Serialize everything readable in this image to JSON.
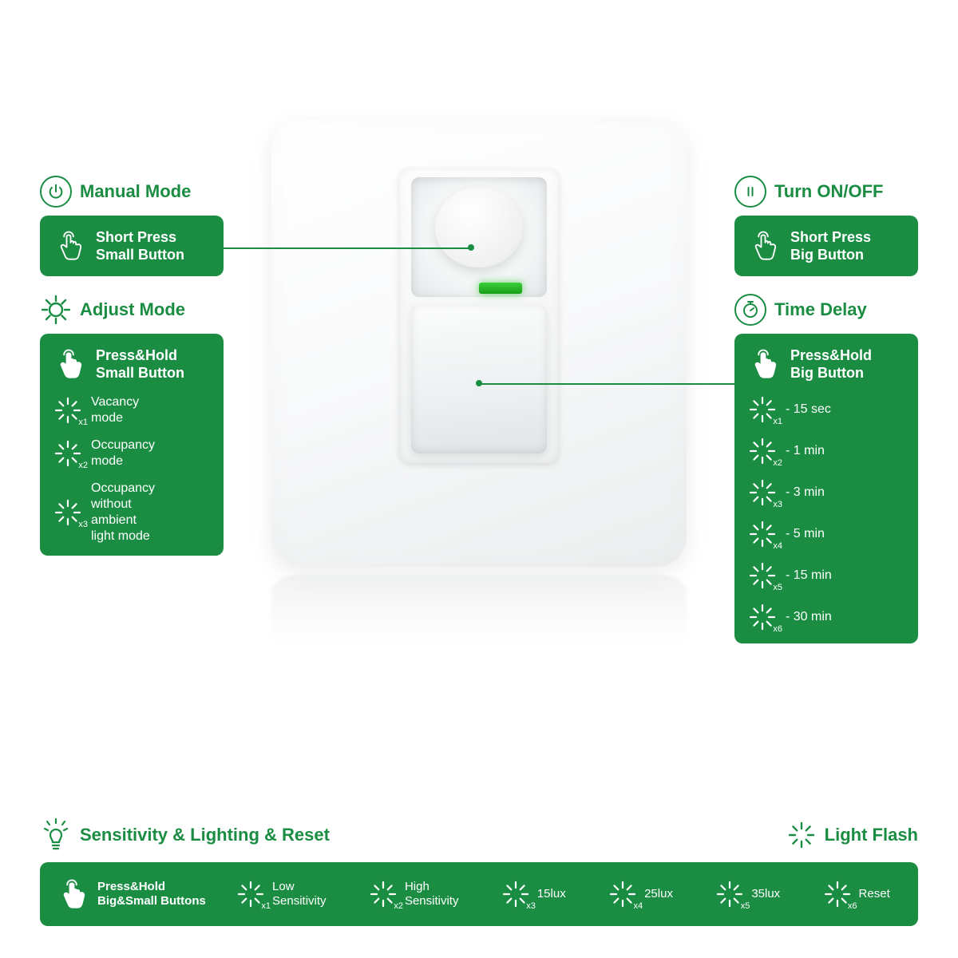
{
  "colors": {
    "green": "#1a8d43",
    "white": "#ffffff"
  },
  "manual": {
    "title": "Manual Mode",
    "action": "Short Press\nSmall Button"
  },
  "adjust": {
    "title": "Adjust Mode",
    "action": "Press&Hold\nSmall Button",
    "items": [
      {
        "x": "x1",
        "label": "Vacancy\nmode"
      },
      {
        "x": "x2",
        "label": "Occupancy\nmode"
      },
      {
        "x": "x3",
        "label": "Occupancy\nwithout\nambient\nlight mode"
      }
    ]
  },
  "onoff": {
    "title": "Turn ON/OFF",
    "action": "Short Press\nBig Button"
  },
  "delay": {
    "title": "Time Delay",
    "action": "Press&Hold\nBig Button",
    "items": [
      {
        "x": "x1",
        "label": "- 15 sec"
      },
      {
        "x": "x2",
        "label": "- 1 min"
      },
      {
        "x": "x3",
        "label": "- 3 min"
      },
      {
        "x": "x4",
        "label": "- 5 min"
      },
      {
        "x": "x5",
        "label": "- 15 min"
      },
      {
        "x": "x6",
        "label": "- 30 min"
      }
    ]
  },
  "bottom": {
    "title": "Sensitivity & Lighting & Reset",
    "flash_title": "Light Flash",
    "action": "Press&Hold\nBig&Small Buttons",
    "items": [
      {
        "x": "x1",
        "label": "Low\nSensitivity"
      },
      {
        "x": "x2",
        "label": "High\nSensitivity"
      },
      {
        "x": "x3",
        "label": "15lux"
      },
      {
        "x": "x4",
        "label": "25lux"
      },
      {
        "x": "x5",
        "label": "35lux"
      },
      {
        "x": "x6",
        "label": "Reset"
      }
    ]
  }
}
